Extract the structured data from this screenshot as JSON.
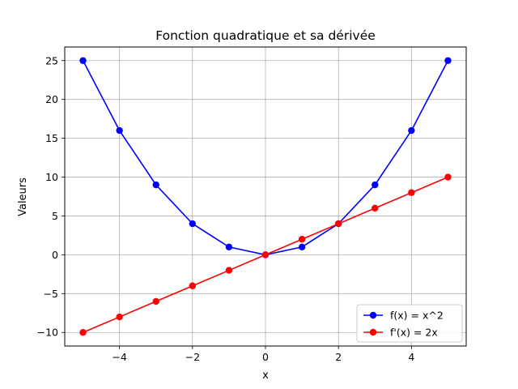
{
  "chart_data": {
    "type": "line",
    "title": "Fonction quadratique et sa dérivée",
    "xlabel": "x",
    "ylabel": "Valeurs",
    "x": [
      -5,
      -4,
      -3,
      -2,
      -1,
      0,
      1,
      2,
      3,
      4,
      5
    ],
    "series": [
      {
        "name": "f(x) = x^2",
        "color": "#0000ff",
        "values": [
          25,
          16,
          9,
          4,
          1,
          0,
          1,
          4,
          9,
          16,
          25
        ]
      },
      {
        "name": "f'(x) = 2x",
        "color": "#ff0000",
        "values": [
          -10,
          -8,
          -6,
          -4,
          -2,
          0,
          2,
          4,
          6,
          8,
          10
        ]
      }
    ],
    "xlim": [
      -5.5,
      5.5
    ],
    "ylim": [
      -11.75,
      26.75
    ],
    "xticks": [
      -4,
      -2,
      0,
      2,
      4
    ],
    "xtick_labels": [
      "−4",
      "−2",
      "0",
      "2",
      "4"
    ],
    "yticks": [
      -10,
      -5,
      0,
      5,
      10,
      15,
      20,
      25
    ],
    "ytick_labels": [
      "−10",
      "−5",
      "0",
      "5",
      "10",
      "15",
      "20",
      "25"
    ],
    "grid": true,
    "legend_position": "bottom-right"
  }
}
